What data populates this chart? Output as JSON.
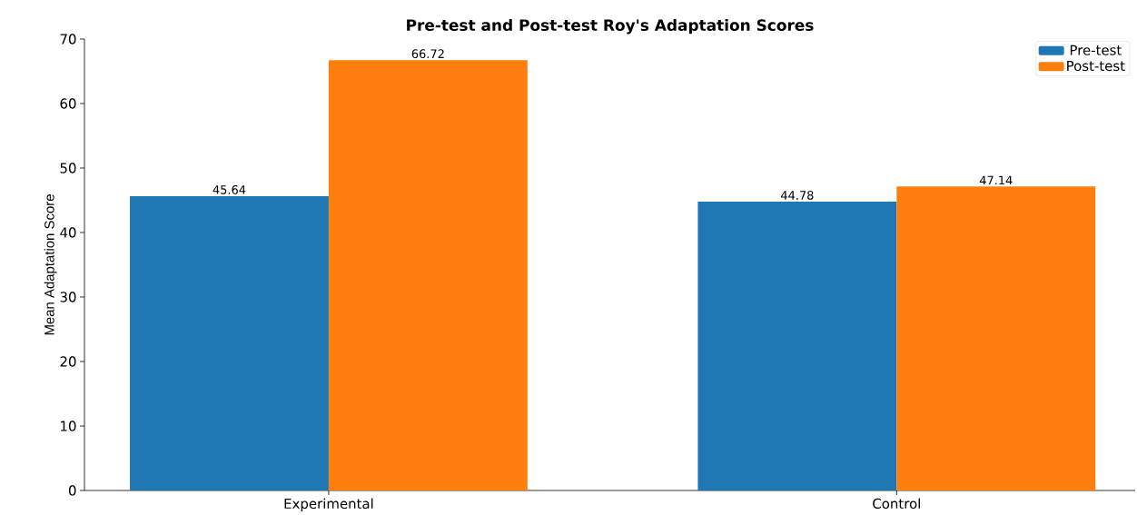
{
  "chart_data": {
    "type": "bar",
    "title": "Pre-test and Post-test Roy's Adaptation Scores",
    "ylabel": "Mean Adaptation Score",
    "categories": [
      "Experimental",
      "Control"
    ],
    "series": [
      {
        "name": "Pre-test",
        "color": "#1f77b4",
        "values": [
          45.64,
          44.78
        ]
      },
      {
        "name": "Post-test",
        "color": "#ff7f0e",
        "values": [
          66.72,
          47.14
        ]
      }
    ],
    "ylim": [
      0,
      70
    ],
    "yticks": [
      0,
      10,
      20,
      30,
      40,
      50,
      60,
      70
    ],
    "data_labels": true,
    "legend": "top right",
    "grid": false
  }
}
